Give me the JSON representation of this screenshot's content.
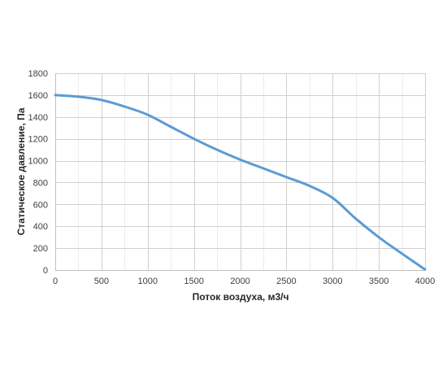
{
  "chart_data": {
    "type": "line",
    "xlabel": "Поток воздуха, м3/ч",
    "ylabel": "Статическое давление, Па",
    "xlim": [
      0,
      4000
    ],
    "ylim": [
      0,
      1800
    ],
    "x_ticks": [
      0,
      500,
      1000,
      1500,
      2000,
      2500,
      3000,
      3500,
      4000
    ],
    "y_ticks": [
      0,
      200,
      400,
      600,
      800,
      1000,
      1200,
      1400,
      1600,
      1800
    ],
    "grid": true,
    "legend": "none",
    "series": [
      {
        "color": "#5b9bd5",
        "x": [
          0,
          250,
          500,
          750,
          1000,
          1250,
          1500,
          1750,
          2000,
          2250,
          2500,
          2750,
          3000,
          3250,
          3500,
          3750,
          4000
        ],
        "y": [
          1600,
          1585,
          1555,
          1495,
          1420,
          1310,
          1200,
          1100,
          1010,
          930,
          850,
          770,
          660,
          470,
          300,
          150,
          5
        ]
      }
    ]
  }
}
